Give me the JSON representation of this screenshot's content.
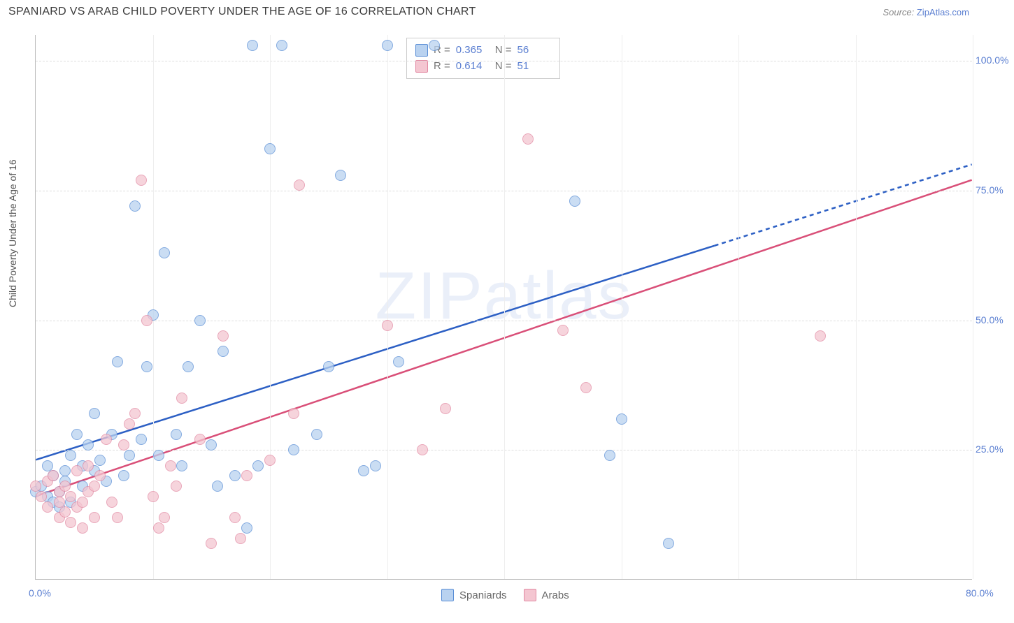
{
  "header": {
    "title": "SPANIARD VS ARAB CHILD POVERTY UNDER THE AGE OF 16 CORRELATION CHART",
    "source_prefix": "Source: ",
    "source_link": "ZipAtlas.com"
  },
  "chart": {
    "type": "scatter",
    "ylabel": "Child Poverty Under the Age of 16",
    "xlim": [
      0,
      80
    ],
    "ylim": [
      0,
      105
    ],
    "xticks": [
      0,
      10,
      20,
      30,
      40,
      50,
      60,
      70,
      80
    ],
    "xtick_labels": [
      "0.0%",
      "",
      "",
      "",
      "",
      "",
      "",
      "",
      "80.0%"
    ],
    "yticks": [
      25,
      50,
      75,
      100
    ],
    "ytick_labels": [
      "25.0%",
      "50.0%",
      "75.0%",
      "100.0%"
    ],
    "xtick_grid": [
      10,
      20,
      30,
      40,
      50,
      60,
      70,
      80
    ],
    "watermark": "ZIPatlas",
    "series": [
      {
        "name": "Spaniards",
        "fill": "#b9d2f0",
        "stroke": "#5b8fd6",
        "line_color": "#2c5fc4",
        "r_value": "0.365",
        "n_value": "56",
        "trend": {
          "x1": 0,
          "y1": 23,
          "x2": 80,
          "y2": 80,
          "dash_from_x": 58
        },
        "marker_r": 8,
        "points": [
          [
            0,
            17
          ],
          [
            0.5,
            18
          ],
          [
            1,
            16
          ],
          [
            1,
            22
          ],
          [
            1.5,
            15
          ],
          [
            1.5,
            20
          ],
          [
            2,
            14
          ],
          [
            2,
            17
          ],
          [
            2.5,
            19
          ],
          [
            2.5,
            21
          ],
          [
            3,
            15
          ],
          [
            3,
            24
          ],
          [
            3.5,
            28
          ],
          [
            4,
            18
          ],
          [
            4,
            22
          ],
          [
            4.5,
            26
          ],
          [
            5,
            21
          ],
          [
            5,
            32
          ],
          [
            5.5,
            23
          ],
          [
            6,
            19
          ],
          [
            6.5,
            28
          ],
          [
            7,
            42
          ],
          [
            7.5,
            20
          ],
          [
            8,
            24
          ],
          [
            8.5,
            72
          ],
          [
            9,
            27
          ],
          [
            9.5,
            41
          ],
          [
            10,
            51
          ],
          [
            10.5,
            24
          ],
          [
            11,
            63
          ],
          [
            12,
            28
          ],
          [
            12.5,
            22
          ],
          [
            13,
            41
          ],
          [
            14,
            50
          ],
          [
            15,
            26
          ],
          [
            15.5,
            18
          ],
          [
            16,
            44
          ],
          [
            17,
            20
          ],
          [
            18,
            10
          ],
          [
            18.5,
            103
          ],
          [
            19,
            22
          ],
          [
            20,
            83
          ],
          [
            21,
            103
          ],
          [
            22,
            25
          ],
          [
            24,
            28
          ],
          [
            25,
            41
          ],
          [
            26,
            78
          ],
          [
            28,
            21
          ],
          [
            29,
            22
          ],
          [
            30,
            103
          ],
          [
            31,
            42
          ],
          [
            34,
            103
          ],
          [
            46,
            73
          ],
          [
            49,
            24
          ],
          [
            50,
            31
          ],
          [
            54,
            7
          ]
        ]
      },
      {
        "name": "Arabs",
        "fill": "#f4c6d1",
        "stroke": "#e28aa3",
        "line_color": "#d94f78",
        "r_value": "0.614",
        "n_value": "51",
        "trend": {
          "x1": 0,
          "y1": 16,
          "x2": 80,
          "y2": 77,
          "dash_from_x": 80
        },
        "marker_r": 8,
        "points": [
          [
            0,
            18
          ],
          [
            0.5,
            16
          ],
          [
            1,
            14
          ],
          [
            1,
            19
          ],
          [
            1.5,
            20
          ],
          [
            2,
            12
          ],
          [
            2,
            15
          ],
          [
            2,
            17
          ],
          [
            2.5,
            13
          ],
          [
            2.5,
            18
          ],
          [
            3,
            11
          ],
          [
            3,
            16
          ],
          [
            3.5,
            14
          ],
          [
            3.5,
            21
          ],
          [
            4,
            10
          ],
          [
            4,
            15
          ],
          [
            4.5,
            17
          ],
          [
            4.5,
            22
          ],
          [
            5,
            12
          ],
          [
            5,
            18
          ],
          [
            5.5,
            20
          ],
          [
            6,
            27
          ],
          [
            6.5,
            15
          ],
          [
            7,
            12
          ],
          [
            7.5,
            26
          ],
          [
            8,
            30
          ],
          [
            8.5,
            32
          ],
          [
            9,
            77
          ],
          [
            9.5,
            50
          ],
          [
            10,
            16
          ],
          [
            10.5,
            10
          ],
          [
            11,
            12
          ],
          [
            11.5,
            22
          ],
          [
            12,
            18
          ],
          [
            12.5,
            35
          ],
          [
            14,
            27
          ],
          [
            15,
            7
          ],
          [
            16,
            47
          ],
          [
            17,
            12
          ],
          [
            17.5,
            8
          ],
          [
            18,
            20
          ],
          [
            20,
            23
          ],
          [
            22,
            32
          ],
          [
            22.5,
            76
          ],
          [
            30,
            49
          ],
          [
            33,
            25
          ],
          [
            35,
            33
          ],
          [
            42,
            85
          ],
          [
            45,
            48
          ],
          [
            47,
            37
          ],
          [
            67,
            47
          ]
        ]
      }
    ],
    "legend_bottom": [
      {
        "label": "Spaniards",
        "fill": "#b9d2f0",
        "stroke": "#5b8fd6"
      },
      {
        "label": "Arabs",
        "fill": "#f4c6d1",
        "stroke": "#e28aa3"
      }
    ],
    "legend_rn_labels": {
      "r": "R =",
      "n": "N ="
    }
  },
  "colors": {
    "grid": "#dddddd",
    "axis": "#bbbbbb",
    "tick_text": "#5b7fd1",
    "label_text": "#555555",
    "title_text": "#3a3a3a"
  }
}
